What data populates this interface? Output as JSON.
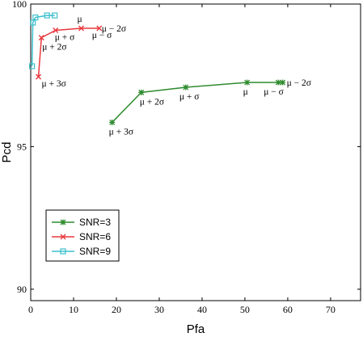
{
  "chart_data": {
    "type": "line",
    "xlabel": "Pfa",
    "ylabel": "Pcd",
    "xlim": [
      0,
      77
    ],
    "ylim": [
      89.6,
      100
    ],
    "x_ticks": [
      0,
      10,
      20,
      30,
      40,
      50,
      60,
      70
    ],
    "y_ticks": [
      90,
      95,
      100
    ],
    "grid": false,
    "legend_position": "lower-left",
    "series": [
      {
        "name": "SNR=3",
        "color": "#2e8b2e",
        "marker": "asterisk",
        "x": [
          19.0,
          25.8,
          36.2,
          50.5,
          57.8,
          58.8
        ],
        "y": [
          95.85,
          96.9,
          97.08,
          97.25,
          97.25,
          97.25
        ]
      },
      {
        "name": "SNR=6",
        "color": "#e8383d",
        "marker": "x",
        "x": [
          1.8,
          2.5,
          5.8,
          11.8,
          16.0
        ],
        "y": [
          97.45,
          98.82,
          99.08,
          99.15,
          99.15
        ]
      },
      {
        "name": "SNR=9",
        "color": "#3cc0cc",
        "marker": "square",
        "x": [
          0.3,
          0.5,
          1.1,
          3.8,
          5.6
        ],
        "y": [
          97.82,
          99.35,
          99.53,
          99.6,
          99.6
        ]
      }
    ],
    "annotations": [
      {
        "text": "μ + 3σ",
        "x": 19.0,
        "y": 95.85
      },
      {
        "text": "μ + 2σ",
        "x": 25.8,
        "y": 96.9
      },
      {
        "text": "μ + σ",
        "x": 36.2,
        "y": 97.08
      },
      {
        "text": "μ",
        "x": 50.5,
        "y": 97.25
      },
      {
        "text": "μ − σ",
        "x": 57.8,
        "y": 97.25
      },
      {
        "text": "μ − 2σ",
        "x": 58.8,
        "y": 97.25
      },
      {
        "text": "μ + 3σ",
        "x": 1.8,
        "y": 97.45
      },
      {
        "text": "μ + 2σ",
        "x": 2.5,
        "y": 98.82
      },
      {
        "text": "μ + σ",
        "x": 5.8,
        "y": 99.08
      },
      {
        "text": "μ",
        "x": 11.8,
        "y": 99.15
      },
      {
        "text": "μ − σ",
        "x": 16.0,
        "y": 99.15
      },
      {
        "text": "μ − 2σ",
        "x": 16.0,
        "y": 99.15
      }
    ]
  }
}
